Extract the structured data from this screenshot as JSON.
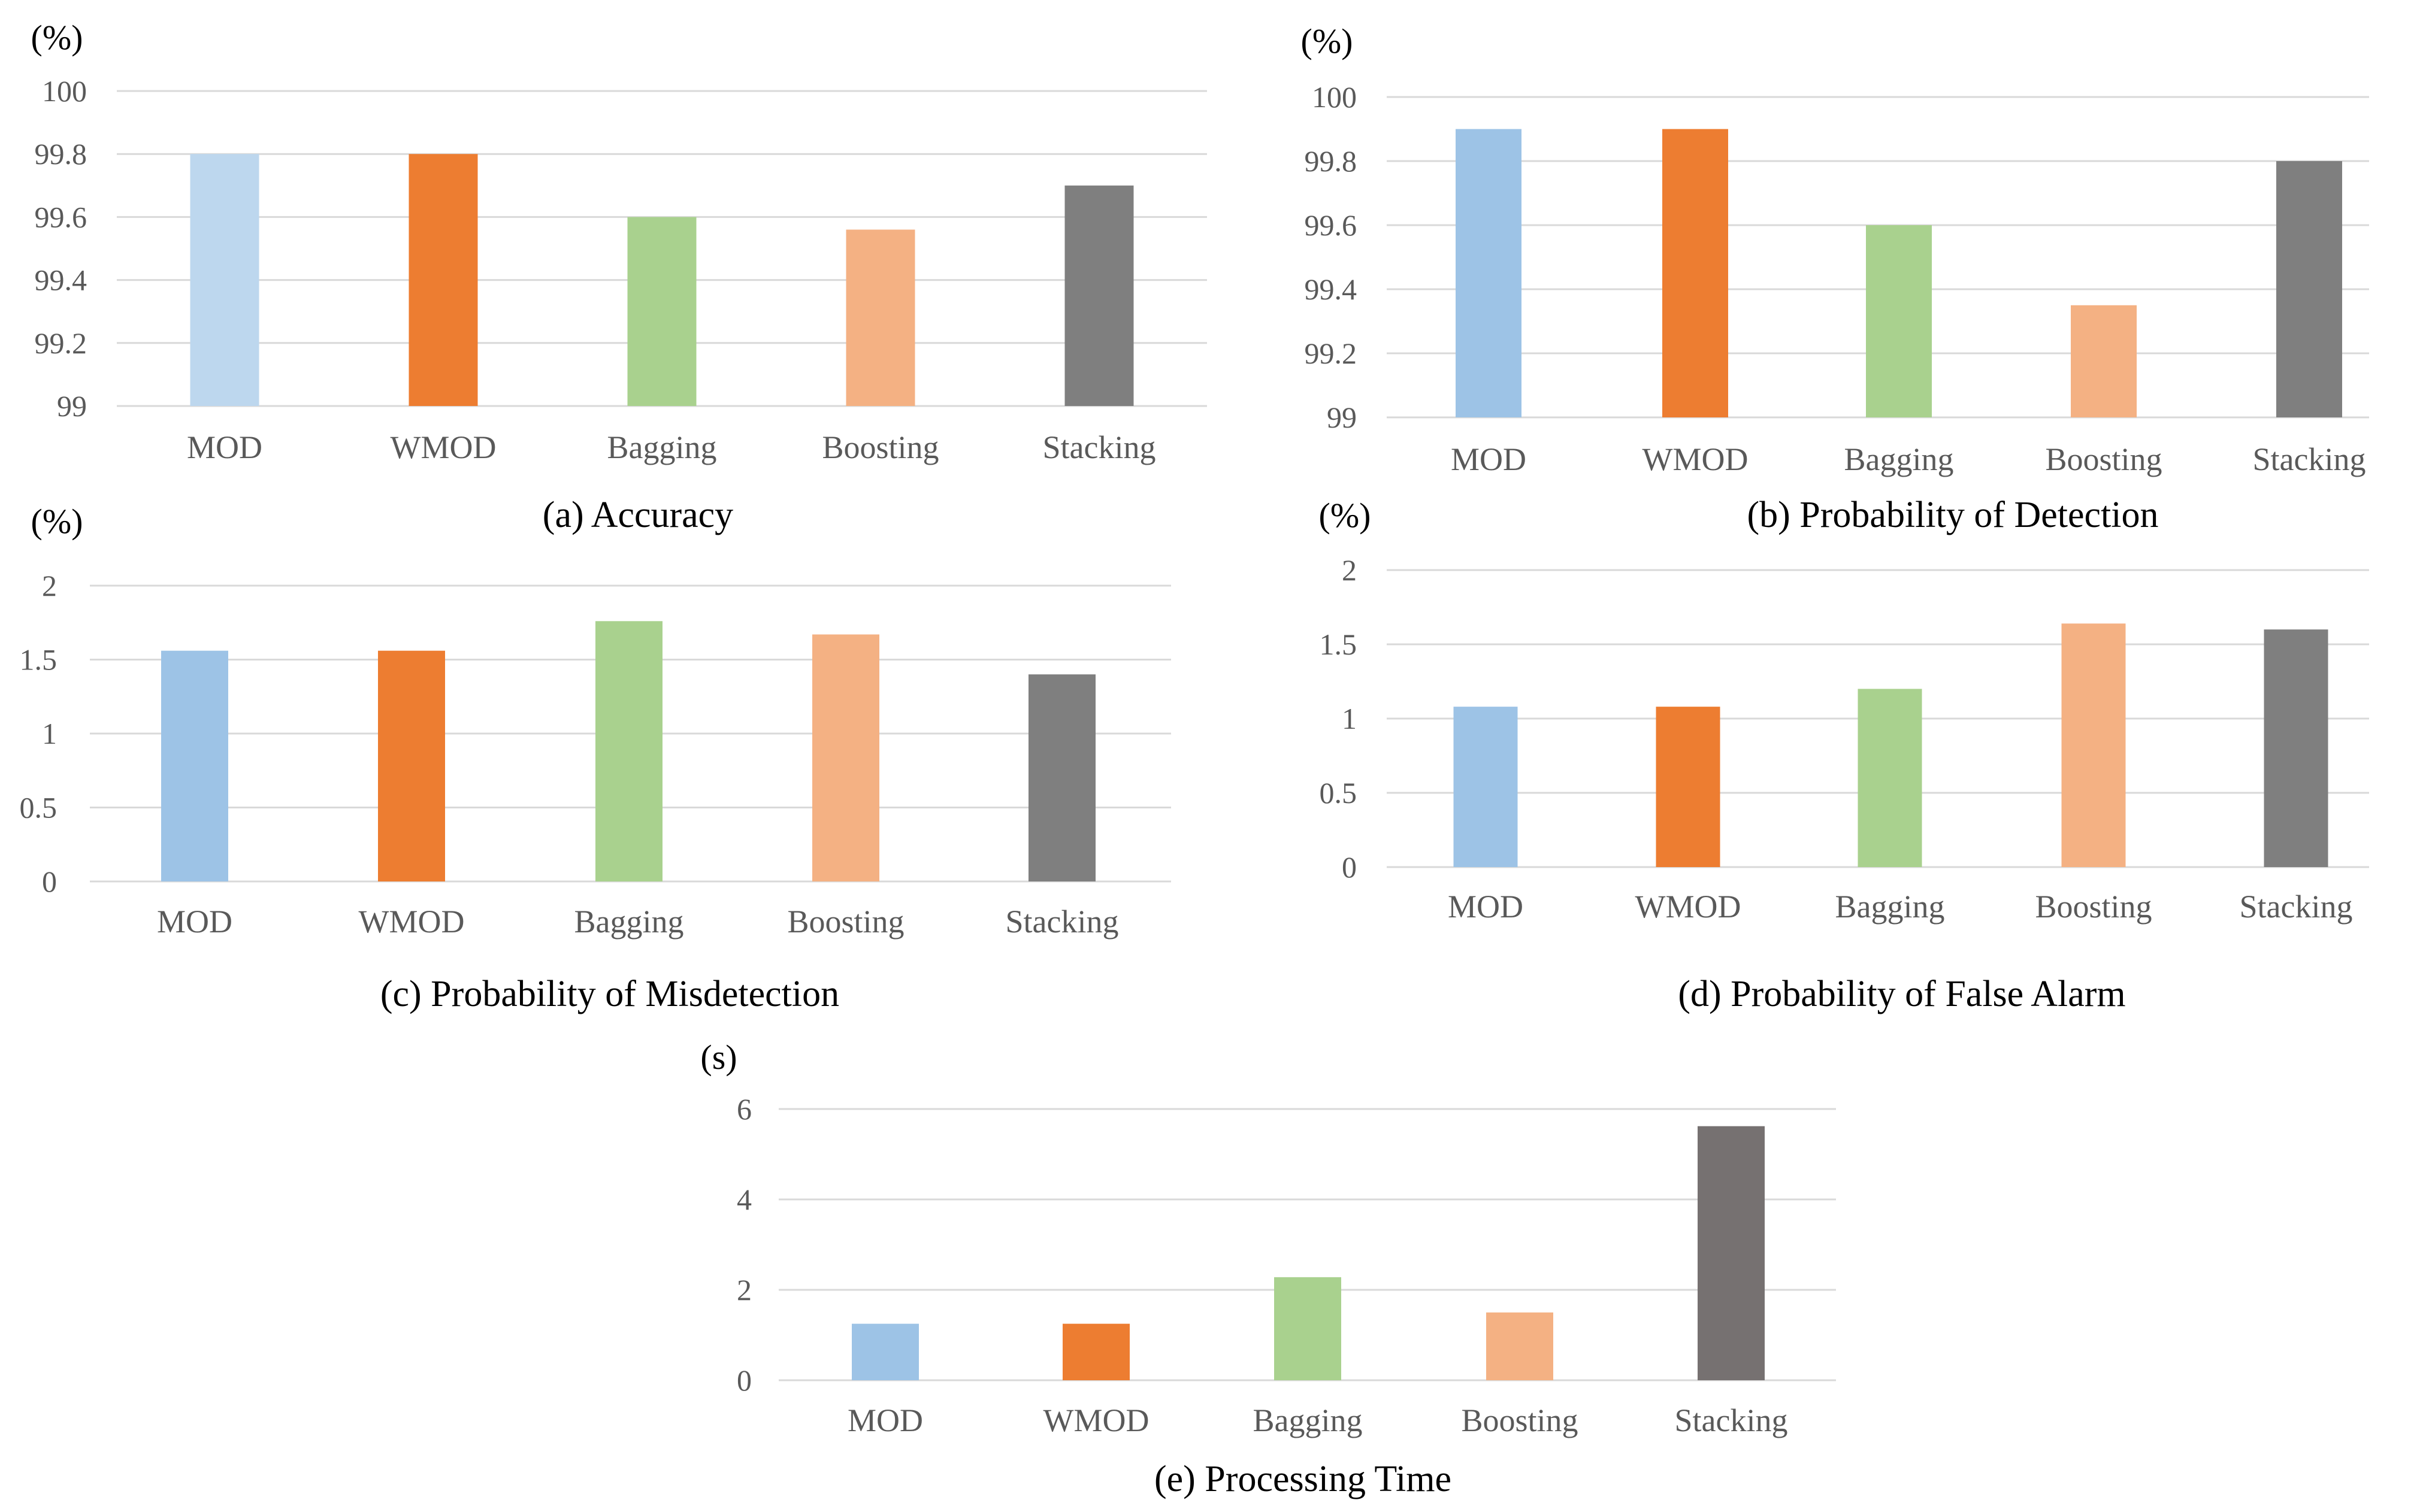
{
  "chart_data": [
    {
      "type": "bar",
      "id": "a",
      "title": "(a) Accuracy",
      "unit": "(%)",
      "categories": [
        "MOD",
        "WMOD",
        "Bagging",
        "Boosting",
        "Stacking"
      ],
      "values": [
        99.8,
        99.8,
        99.6,
        99.56,
        99.7
      ],
      "colors": [
        "#bdd7ee",
        "#ed7d31",
        "#a9d18e",
        "#f4b183",
        "#7f7f7f"
      ],
      "ylim": [
        99,
        100
      ],
      "yticks": [
        99,
        99.2,
        99.4,
        99.6,
        99.8,
        100
      ],
      "ytick_labels": [
        "99",
        "99.2",
        "99.4",
        "99.6",
        "99.8",
        "100"
      ],
      "grid": true,
      "legend": "none"
    },
    {
      "type": "bar",
      "id": "b",
      "title": "(b) Probability of Detection",
      "unit": "(%)",
      "categories": [
        "MOD",
        "WMOD",
        "Bagging",
        "Boosting",
        "Stacking"
      ],
      "values": [
        99.9,
        99.9,
        99.6,
        99.35,
        99.8
      ],
      "colors": [
        "#9dc3e6",
        "#ed7d31",
        "#a9d18e",
        "#f4b183",
        "#7f7f7f"
      ],
      "ylim": [
        99,
        100
      ],
      "yticks": [
        99,
        99.2,
        99.4,
        99.6,
        99.8,
        100
      ],
      "ytick_labels": [
        "99",
        "99.2",
        "99.4",
        "99.6",
        "99.8",
        "100"
      ],
      "grid": true,
      "legend": "none"
    },
    {
      "type": "bar",
      "id": "c",
      "title": "(c) Probability of Misdetection",
      "unit": "(%)",
      "categories": [
        "MOD",
        "WMOD",
        "Bagging",
        "Boosting",
        "Stacking"
      ],
      "values": [
        1.56,
        1.56,
        1.76,
        1.67,
        1.4
      ],
      "colors": [
        "#9dc3e6",
        "#ed7d31",
        "#a9d18e",
        "#f4b183",
        "#7f7f7f"
      ],
      "ylim": [
        0,
        2
      ],
      "yticks": [
        0,
        0.5,
        1,
        1.5,
        2
      ],
      "ytick_labels": [
        "0",
        "0.5",
        "1",
        "1.5",
        "2"
      ],
      "grid": true,
      "legend": "none"
    },
    {
      "type": "bar",
      "id": "d",
      "title": "(d) Probability of False Alarm",
      "unit": "(%)",
      "categories": [
        "MOD",
        "WMOD",
        "Bagging",
        "Boosting",
        "Stacking"
      ],
      "values": [
        1.08,
        1.08,
        1.2,
        1.64,
        1.6
      ],
      "colors": [
        "#9dc3e6",
        "#ed7d31",
        "#a9d18e",
        "#f4b183",
        "#7f7f7f"
      ],
      "ylim": [
        0,
        2
      ],
      "yticks": [
        0,
        0.5,
        1,
        1.5,
        2
      ],
      "ytick_labels": [
        "0",
        "0.5",
        "1",
        "1.5",
        "2"
      ],
      "grid": true,
      "legend": "none"
    },
    {
      "type": "bar",
      "id": "e",
      "title": "(e) Processing Time",
      "unit": "(s)",
      "categories": [
        "MOD",
        "WMOD",
        "Bagging",
        "Boosting",
        "Stacking"
      ],
      "values": [
        1.25,
        1.25,
        2.28,
        1.5,
        5.62
      ],
      "colors": [
        "#9dc3e6",
        "#ed7d31",
        "#a9d18e",
        "#f4b183",
        "#767171"
      ],
      "ylim": [
        0,
        6
      ],
      "yticks": [
        0,
        2,
        4,
        6
      ],
      "ytick_labels": [
        "0",
        "2",
        "4",
        "6"
      ],
      "grid": true,
      "legend": "none"
    }
  ]
}
